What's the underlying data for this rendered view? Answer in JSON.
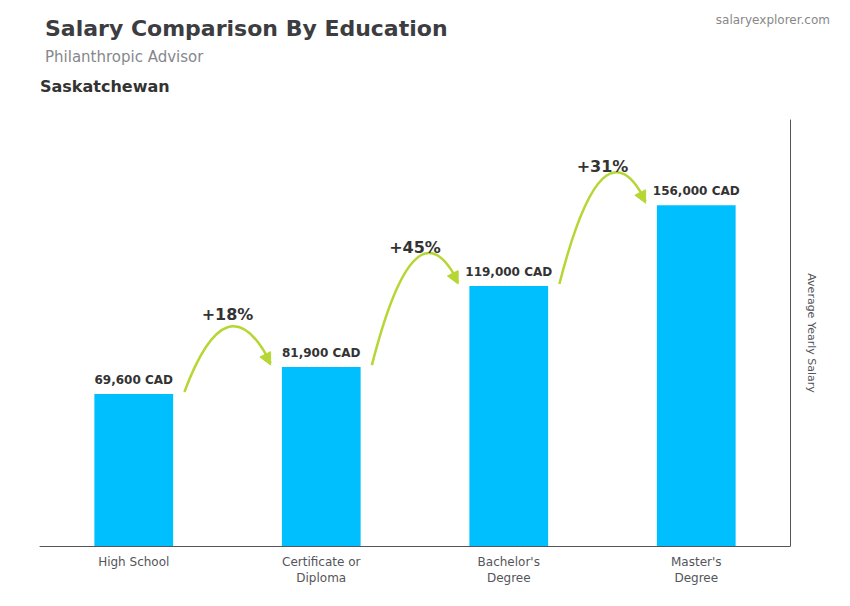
{
  "chart_data": {
    "type": "bar",
    "title": "Salary Comparison By Education",
    "subtitle": "Philanthropic Advisor",
    "ylabel": "Average Yearly Salary",
    "categories": [
      "High School",
      "Certificate or\nDiploma",
      "Bachelor's\nDegree",
      "Master's\nDegree"
    ],
    "values": [
      69600,
      81900,
      119000,
      156000
    ],
    "value_labels": [
      "69,600 CAD",
      "81,900 CAD",
      "119,000 CAD",
      "156,000 CAD"
    ],
    "color": "#00bfff",
    "ylim": [
      0,
      195000
    ],
    "tick_labels": "x",
    "data_labels": true,
    "grid": false,
    "annotations": [
      {
        "text": "Saskatchewan"
      },
      {
        "text": "salaryexplorer.com"
      },
      {
        "text": "+18%",
        "from": "High School",
        "to": "Certificate or\nDiploma"
      },
      {
        "text": "+45%",
        "from": "Certificate or\nDiploma",
        "to": "Bachelor's\nDegree"
      },
      {
        "text": "+31%",
        "from": "Bachelor's\nDegree",
        "to": "Master's\nDegree"
      }
    ]
  }
}
